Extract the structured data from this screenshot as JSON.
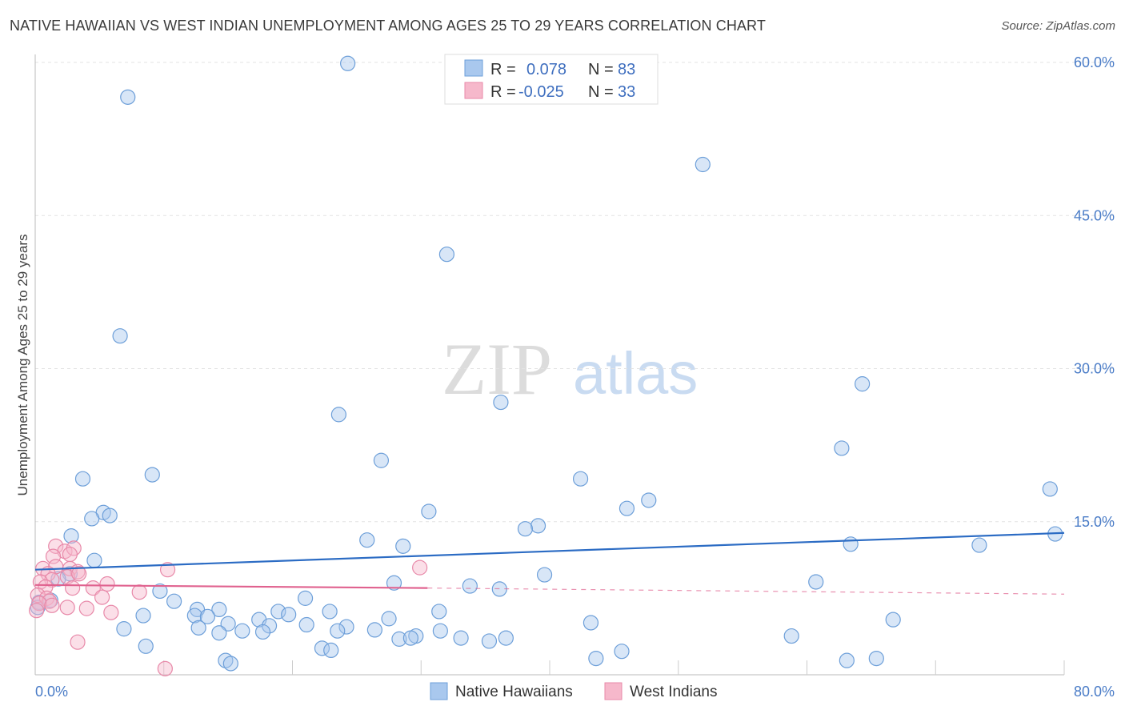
{
  "header": {
    "title": "NATIVE HAWAIIAN VS WEST INDIAN UNEMPLOYMENT AMONG AGES 25 TO 29 YEARS CORRELATION CHART",
    "source": "Source: ZipAtlas.com"
  },
  "watermark": {
    "zip": "ZIP",
    "atlas": "atlas"
  },
  "colors": {
    "blue_fill": "#a9c8ee",
    "blue_stroke": "#6d9fd9",
    "blue_line": "#2c6cc4",
    "pink_fill": "#f6b8cb",
    "pink_stroke": "#e889a9",
    "pink_line": "#e0628f"
  },
  "legend": {
    "rows": [
      {
        "r_label": "R =",
        "r_value": "0.078",
        "n_label": "N =",
        "n_value": "83"
      },
      {
        "r_label": "R =",
        "r_value": "-0.025",
        "n_label": "N =",
        "n_value": "33"
      }
    ]
  },
  "bottom_legend": {
    "series1": "Native Hawaiians",
    "series2": "West Indians"
  },
  "chart_data": {
    "type": "scatter",
    "title": "NATIVE HAWAIIAN VS WEST INDIAN UNEMPLOYMENT AMONG AGES 25 TO 29 YEARS CORRELATION CHART",
    "xlabel": "",
    "ylabel": "Unemployment Among Ages 25 to 29 years",
    "xlim": [
      0,
      80
    ],
    "ylim": [
      0,
      60
    ],
    "x_ticks": [
      "0.0%",
      "80.0%"
    ],
    "y_ticks": [
      {
        "value": 15,
        "label": "15.0%"
      },
      {
        "value": 30,
        "label": "30.0%"
      },
      {
        "value": 45,
        "label": "45.0%"
      },
      {
        "value": 60,
        "label": "60.0%"
      }
    ],
    "series": [
      {
        "name": "Native Hawaiians",
        "R": 0.078,
        "N": 83,
        "trend": {
          "x": [
            0,
            80
          ],
          "y": [
            10.3,
            13.9
          ]
        },
        "points": [
          [
            24.3,
            59.9
          ],
          [
            7.2,
            56.6
          ],
          [
            51.9,
            50.0
          ],
          [
            32.0,
            41.2
          ],
          [
            6.6,
            33.2
          ],
          [
            64.3,
            28.5
          ],
          [
            36.2,
            26.7
          ],
          [
            23.6,
            25.5
          ],
          [
            62.7,
            22.2
          ],
          [
            26.9,
            21.0
          ],
          [
            9.1,
            19.6
          ],
          [
            3.7,
            19.2
          ],
          [
            42.4,
            19.2
          ],
          [
            78.9,
            18.2
          ],
          [
            47.7,
            17.1
          ],
          [
            30.6,
            16.0
          ],
          [
            5.3,
            15.9
          ],
          [
            5.8,
            15.6
          ],
          [
            4.4,
            15.3
          ],
          [
            39.1,
            14.6
          ],
          [
            46.0,
            16.3
          ],
          [
            38.1,
            14.3
          ],
          [
            2.8,
            13.6
          ],
          [
            79.3,
            13.8
          ],
          [
            25.8,
            13.2
          ],
          [
            63.4,
            12.8
          ],
          [
            28.6,
            12.6
          ],
          [
            73.4,
            12.7
          ],
          [
            4.6,
            11.2
          ],
          [
            2.7,
            9.9
          ],
          [
            39.6,
            9.8
          ],
          [
            27.9,
            9.0
          ],
          [
            60.7,
            9.1
          ],
          [
            33.8,
            8.7
          ],
          [
            36.1,
            8.4
          ],
          [
            9.7,
            8.2
          ],
          [
            1.2,
            7.3
          ],
          [
            10.8,
            7.2
          ],
          [
            21.0,
            7.5
          ],
          [
            12.6,
            6.4
          ],
          [
            14.3,
            6.4
          ],
          [
            18.9,
            6.2
          ],
          [
            22.9,
            6.2
          ],
          [
            31.4,
            6.2
          ],
          [
            8.4,
            5.8
          ],
          [
            12.4,
            5.8
          ],
          [
            13.4,
            5.7
          ],
          [
            17.4,
            5.4
          ],
          [
            19.7,
            5.9
          ],
          [
            27.5,
            5.5
          ],
          [
            43.2,
            5.1
          ],
          [
            15.0,
            5.0
          ],
          [
            18.2,
            4.8
          ],
          [
            21.1,
            4.9
          ],
          [
            24.2,
            4.7
          ],
          [
            31.5,
            4.3
          ],
          [
            12.7,
            4.6
          ],
          [
            16.1,
            4.3
          ],
          [
            17.7,
            4.2
          ],
          [
            14.3,
            4.1
          ],
          [
            26.4,
            4.4
          ],
          [
            29.6,
            3.8
          ],
          [
            36.6,
            3.6
          ],
          [
            28.3,
            3.5
          ],
          [
            29.2,
            3.6
          ],
          [
            35.3,
            3.3
          ],
          [
            33.1,
            3.6
          ],
          [
            58.8,
            3.8
          ],
          [
            6.9,
            4.5
          ],
          [
            23.5,
            4.3
          ],
          [
            66.7,
            5.4
          ],
          [
            8.6,
            2.8
          ],
          [
            22.3,
            2.6
          ],
          [
            23.0,
            2.4
          ],
          [
            43.6,
            1.6
          ],
          [
            45.6,
            2.3
          ],
          [
            63.1,
            1.4
          ],
          [
            65.4,
            1.6
          ],
          [
            14.8,
            1.4
          ],
          [
            15.2,
            1.1
          ],
          [
            0.3,
            7.1
          ],
          [
            0.2,
            6.6
          ],
          [
            1.8,
            9.4
          ]
        ]
      },
      {
        "name": "West Indians",
        "R": -0.025,
        "N": 33,
        "trend": {
          "x": [
            0,
            30.5
          ],
          "y": [
            8.8,
            8.5
          ]
        },
        "trend_extension": {
          "x": [
            30.5,
            80
          ],
          "y": [
            8.5,
            7.9
          ]
        },
        "points": [
          [
            1.6,
            12.6
          ],
          [
            2.3,
            12.1
          ],
          [
            3.0,
            12.4
          ],
          [
            2.7,
            11.8
          ],
          [
            1.4,
            11.6
          ],
          [
            0.6,
            10.4
          ],
          [
            1.6,
            10.6
          ],
          [
            2.7,
            10.4
          ],
          [
            3.3,
            10.1
          ],
          [
            10.3,
            10.3
          ],
          [
            29.9,
            10.5
          ],
          [
            1.0,
            9.9
          ],
          [
            2.5,
            9.6
          ],
          [
            3.4,
            9.9
          ],
          [
            1.3,
            9.3
          ],
          [
            0.4,
            9.1
          ],
          [
            0.8,
            8.6
          ],
          [
            2.9,
            8.5
          ],
          [
            4.5,
            8.5
          ],
          [
            5.6,
            8.9
          ],
          [
            8.1,
            8.1
          ],
          [
            0.2,
            7.8
          ],
          [
            0.9,
            7.5
          ],
          [
            1.1,
            7.2
          ],
          [
            5.2,
            7.6
          ],
          [
            0.3,
            7.0
          ],
          [
            1.3,
            6.8
          ],
          [
            2.5,
            6.6
          ],
          [
            4.0,
            6.5
          ],
          [
            5.9,
            6.1
          ],
          [
            0.1,
            6.3
          ],
          [
            3.3,
            3.2
          ],
          [
            10.1,
            0.6
          ]
        ]
      }
    ]
  }
}
